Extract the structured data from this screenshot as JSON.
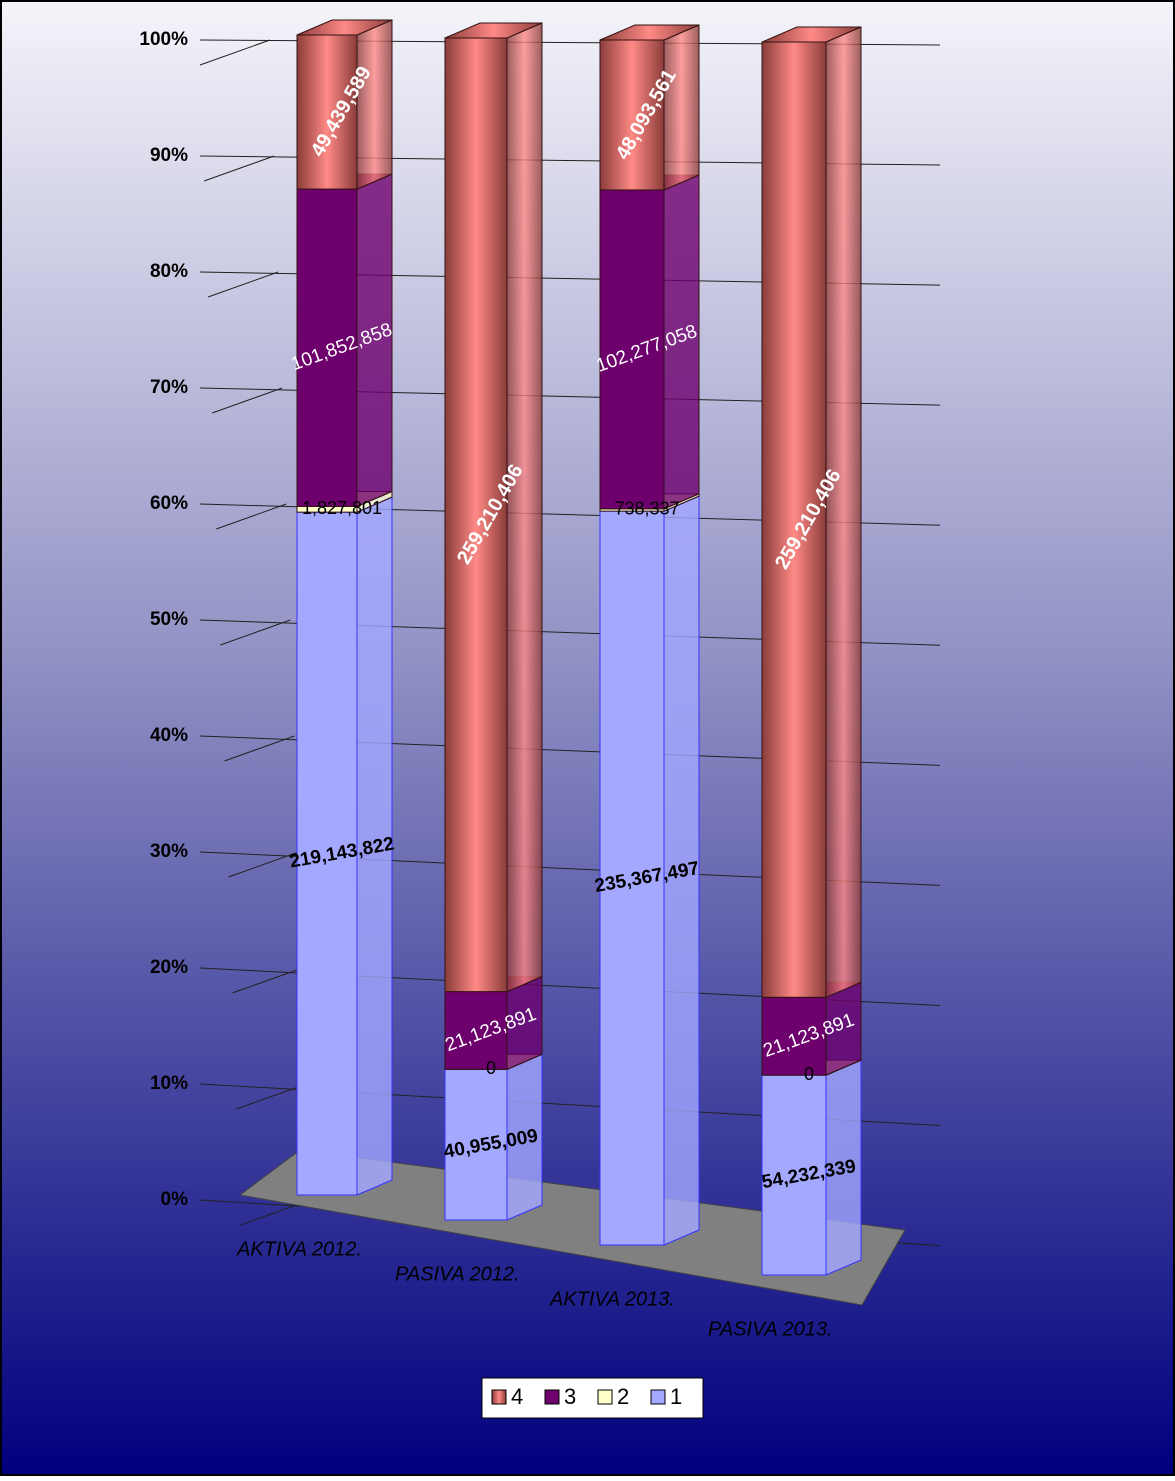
{
  "chart_data": {
    "type": "bar",
    "stacking": "percent",
    "categories": [
      "AKTIVA 2012.",
      "PASIVA 2012.",
      "AKTIVA 2013.",
      "PASIVA 2013."
    ],
    "series": [
      {
        "name": "1",
        "color": "#a4a8ff",
        "values": [
          219143822,
          40955009,
          235367497,
          54232339
        ],
        "value_labels": [
          "219,143,822",
          "40,955,009",
          "235,367,497",
          "54,232,339"
        ]
      },
      {
        "name": "2",
        "color": "#ffffcc",
        "values": [
          1827801,
          0,
          738337,
          0
        ],
        "value_labels": [
          "1,827,801",
          "0",
          "738,337",
          "0"
        ]
      },
      {
        "name": "3",
        "color": "#6e006e",
        "values": [
          101852858,
          21123891,
          102277058,
          21123891
        ],
        "value_labels": [
          "101,852,858",
          "21,123,891",
          "102,277,058",
          "21,123,891"
        ]
      },
      {
        "name": "4",
        "color": "#c0605c",
        "values": [
          49439589,
          259210406,
          48093561,
          259210406
        ],
        "value_labels": [
          "49,439,589",
          "259,210,406",
          "48,093,561",
          "259,210,406"
        ]
      }
    ],
    "ylim": [
      0,
      100
    ],
    "yticks": [
      {
        "value": 0,
        "label": "0%"
      },
      {
        "value": 10,
        "label": "10%"
      },
      {
        "value": 20,
        "label": "20%"
      },
      {
        "value": 30,
        "label": "30%"
      },
      {
        "value": 40,
        "label": "40%"
      },
      {
        "value": 50,
        "label": "50%"
      },
      {
        "value": 60,
        "label": "60%"
      },
      {
        "value": 70,
        "label": "70%"
      },
      {
        "value": 80,
        "label": "80%"
      },
      {
        "value": 90,
        "label": "90%"
      },
      {
        "value": 100,
        "label": "100%"
      }
    ],
    "grid": true,
    "legend": "bottom"
  }
}
